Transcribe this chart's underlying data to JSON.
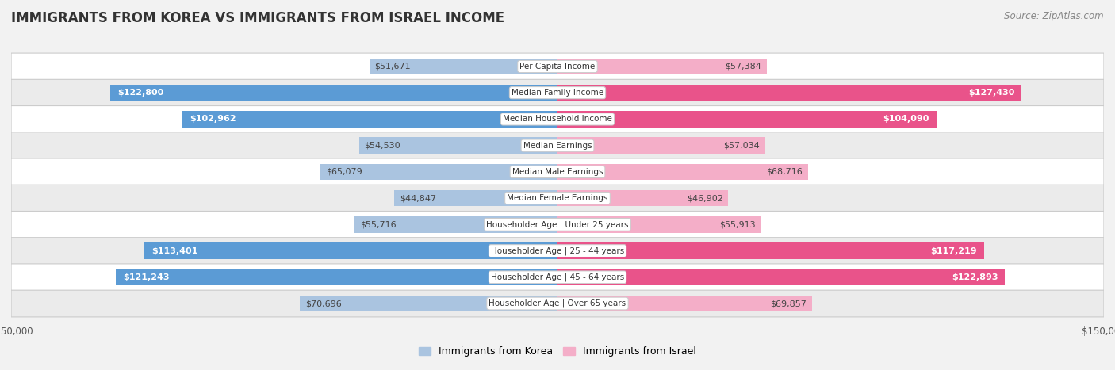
{
  "title": "IMMIGRANTS FROM KOREA VS IMMIGRANTS FROM ISRAEL INCOME",
  "source": "Source: ZipAtlas.com",
  "categories": [
    "Per Capita Income",
    "Median Family Income",
    "Median Household Income",
    "Median Earnings",
    "Median Male Earnings",
    "Median Female Earnings",
    "Householder Age | Under 25 years",
    "Householder Age | 25 - 44 years",
    "Householder Age | 45 - 64 years",
    "Householder Age | Over 65 years"
  ],
  "korea_values": [
    51671,
    122800,
    102962,
    54530,
    65079,
    44847,
    55716,
    113401,
    121243,
    70696
  ],
  "israel_values": [
    57384,
    127430,
    104090,
    57034,
    68716,
    46902,
    55913,
    117219,
    122893,
    69857
  ],
  "korea_labels": [
    "$51,671",
    "$122,800",
    "$102,962",
    "$54,530",
    "$65,079",
    "$44,847",
    "$55,716",
    "$113,401",
    "$121,243",
    "$70,696"
  ],
  "israel_labels": [
    "$57,384",
    "$127,430",
    "$104,090",
    "$57,034",
    "$68,716",
    "$46,902",
    "$55,913",
    "$117,219",
    "$122,893",
    "$69,857"
  ],
  "korea_color_light": "#aac4e0",
  "korea_color_dark": "#5b9bd5",
  "israel_color_light": "#f4aec8",
  "israel_color_dark": "#e9538a",
  "inside_label_color": "#ffffff",
  "outside_label_color": "#444444",
  "korea_legend": "Immigrants from Korea",
  "israel_legend": "Immigrants from Israel",
  "max_value": 150000,
  "background_color": "#f2f2f2",
  "bar_height": 0.62,
  "inside_label_threshold": 85000,
  "title_fontsize": 12,
  "source_fontsize": 8.5,
  "label_fontsize": 8,
  "category_fontsize": 7.5,
  "legend_fontsize": 9,
  "axis_label_fontsize": 8.5
}
